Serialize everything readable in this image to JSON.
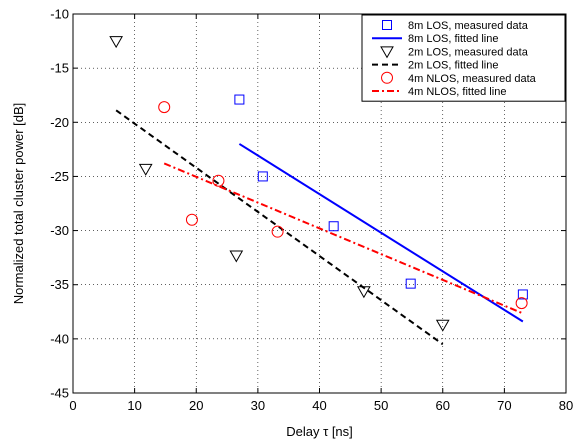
{
  "chart_data": {
    "type": "scatter",
    "xlabel": "Delay τ [ns]",
    "ylabel": "Normalized total cluster power [dB]",
    "xlim": [
      0,
      80
    ],
    "ylim": [
      -45,
      -10
    ],
    "xticks": [
      0,
      10,
      20,
      30,
      40,
      50,
      60,
      70,
      80
    ],
    "yticks": [
      -45,
      -40,
      -35,
      -30,
      -25,
      -20,
      -15,
      -10
    ],
    "grid": true,
    "legend_position": "top-right",
    "series": [
      {
        "name": "8m LOS, measured data",
        "kind": "points",
        "marker": "square",
        "color": "#0000ff",
        "points": [
          [
            27,
            -17.9
          ],
          [
            30.8,
            -25
          ],
          [
            42.3,
            -29.6
          ],
          [
            54.8,
            -34.9
          ],
          [
            73,
            -35.9
          ]
        ]
      },
      {
        "name": "8m LOS, fitted line",
        "kind": "line",
        "style": "solid",
        "color": "#0000ff",
        "points": [
          [
            27,
            -22
          ],
          [
            73,
            -38.4
          ]
        ]
      },
      {
        "name": "2m LOS, measured data",
        "kind": "points",
        "marker": "triangle-down",
        "color": "#000000",
        "points": [
          [
            7,
            -12.5
          ],
          [
            11.8,
            -24.3
          ],
          [
            26.5,
            -32.3
          ],
          [
            47.2,
            -35.6
          ],
          [
            60,
            -38.7
          ]
        ]
      },
      {
        "name": "2m LOS, fitted line",
        "kind": "line",
        "style": "dashed",
        "color": "#000000",
        "points": [
          [
            7,
            -18.9
          ],
          [
            60,
            -40.5
          ]
        ]
      },
      {
        "name": "4m NLOS, measured data",
        "kind": "points",
        "marker": "circle",
        "color": "#ff0000",
        "points": [
          [
            14.8,
            -18.6
          ],
          [
            19.3,
            -29
          ],
          [
            23.6,
            -25.4
          ],
          [
            33.2,
            -30.1
          ],
          [
            72.8,
            -36.7
          ]
        ]
      },
      {
        "name": "4m NLOS, fitted line",
        "kind": "line",
        "style": "dashdot",
        "color": "#ff0000",
        "points": [
          [
            14.8,
            -23.8
          ],
          [
            72.8,
            -37.6
          ]
        ]
      }
    ]
  }
}
